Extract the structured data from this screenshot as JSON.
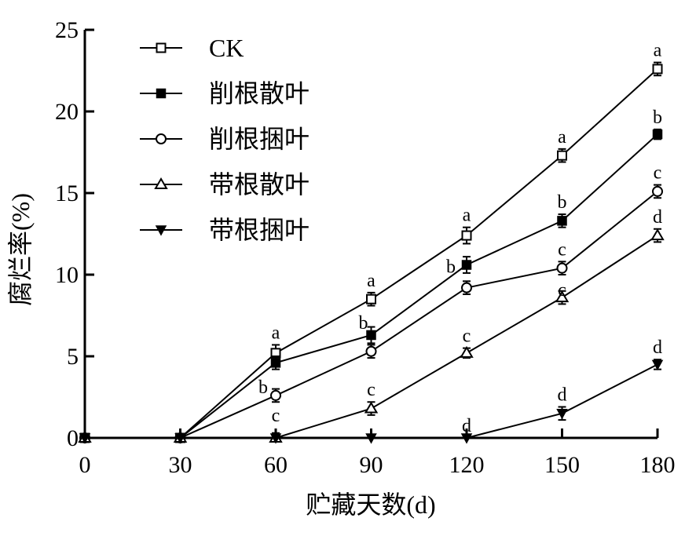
{
  "chart_data": {
    "type": "line",
    "title": "",
    "xlabel": "贮藏天数(d)",
    "ylabel": "腐烂率(%)",
    "x": [
      0,
      30,
      60,
      90,
      120,
      150,
      180
    ],
    "xlim": [
      0,
      180
    ],
    "ylim": [
      0,
      25
    ],
    "xticks": [
      "0",
      "30",
      "60",
      "90",
      "120",
      "150",
      "180"
    ],
    "yticks": [
      "0",
      "5",
      "10",
      "15",
      "20",
      "25"
    ],
    "grid": false,
    "legend_position": "top-left",
    "series": [
      {
        "name": "CK",
        "marker": "square-open",
        "values": [
          0,
          0,
          5.2,
          8.5,
          12.4,
          17.3,
          22.6
        ],
        "errors": [
          0,
          0,
          0.5,
          0.4,
          0.5,
          0.4,
          0.4
        ],
        "labels": [
          "",
          "",
          "a",
          "a",
          "a",
          "a",
          "a"
        ]
      },
      {
        "name": "削根散叶",
        "marker": "square-filled",
        "values": [
          0,
          0,
          4.6,
          6.3,
          10.6,
          13.3,
          18.6
        ],
        "errors": [
          0,
          0,
          0.4,
          0.5,
          0.5,
          0.4,
          0.3
        ],
        "labels": [
          "",
          "",
          "",
          "b",
          "",
          "b",
          "b"
        ]
      },
      {
        "name": "削根捆叶",
        "marker": "circle-open",
        "values": [
          0,
          0,
          2.6,
          5.3,
          9.2,
          10.4,
          15.1
        ],
        "errors": [
          0,
          0,
          0.4,
          0.4,
          0.4,
          0.4,
          0.4
        ],
        "labels": [
          "",
          "",
          "b",
          "",
          "b",
          "c",
          "c"
        ]
      },
      {
        "name": "带根散叶",
        "marker": "triangle-up-open",
        "values": [
          0,
          0,
          0,
          1.8,
          5.2,
          8.6,
          12.4
        ],
        "errors": [
          0,
          0,
          0.3,
          0.4,
          0.3,
          0.4,
          0.4
        ],
        "labels": [
          "",
          "",
          "c",
          "c",
          "c",
          "c",
          "d"
        ]
      },
      {
        "name": "带根捆叶",
        "marker": "triangle-down-filled",
        "values": [
          0,
          0,
          0,
          0,
          0,
          1.5,
          4.5
        ],
        "errors": [
          0,
          0,
          0,
          0,
          0,
          0.4,
          0.3
        ],
        "labels": [
          "",
          "",
          "",
          "",
          "d",
          "d",
          "d"
        ]
      }
    ]
  }
}
